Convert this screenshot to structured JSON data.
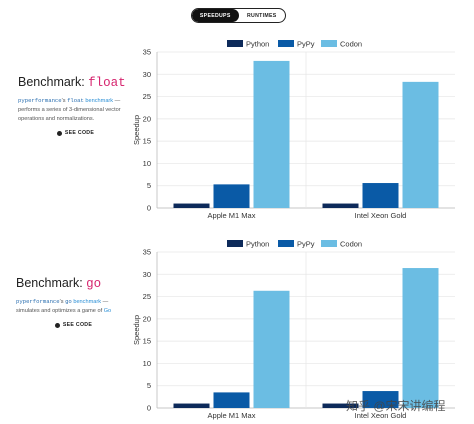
{
  "toggle": {
    "active": "SPEEDUPS",
    "inactive": "RUNTIMES"
  },
  "benchmarks": [
    {
      "title_prefix": "Benchmark: ",
      "title_code": "float",
      "desc_mono1": "pyperformance",
      "desc_text1": "'s ",
      "desc_mono2": "float",
      "desc_link": " benchmark",
      "desc_text2": " — performs a series of 3-dimensional vector operations and normalizations.",
      "see_code": "SEE CODE"
    },
    {
      "title_prefix": "Benchmark: ",
      "title_code": "go",
      "desc_mono1": "pyperformance",
      "desc_text1": "'s ",
      "desc_mono2": "go",
      "desc_link": " benchmark",
      "desc_text2": " — simulates and optimizes a game of ",
      "desc_link2": "Go",
      "see_code": "SEE CODE"
    }
  ],
  "colors": {
    "python": "#0d2a5a",
    "pypy": "#0a5aa6",
    "codon": "#6bbde3"
  },
  "chart_data": [
    {
      "type": "bar",
      "categories": [
        "Apple M1 Max",
        "Intel Xeon Gold"
      ],
      "series": [
        {
          "name": "Python",
          "values": [
            1,
            1
          ]
        },
        {
          "name": "PyPy",
          "values": [
            5.3,
            5.6
          ]
        },
        {
          "name": "Codon",
          "values": [
            33,
            28.3
          ]
        }
      ],
      "ylabel": "Speedup",
      "ylim": [
        0,
        35
      ],
      "yticks": [
        0,
        5,
        10,
        15,
        20,
        25,
        30,
        35
      ],
      "legend": "top-center",
      "grid": true
    },
    {
      "type": "bar",
      "categories": [
        "Apple M1 Max",
        "Intel Xeon Gold"
      ],
      "series": [
        {
          "name": "Python",
          "values": [
            1,
            1
          ]
        },
        {
          "name": "PyPy",
          "values": [
            3.5,
            3.8
          ]
        },
        {
          "name": "Codon",
          "values": [
            26.3,
            31.4
          ]
        }
      ],
      "ylabel": "Speedup",
      "ylim": [
        0,
        35
      ],
      "yticks": [
        0,
        5,
        10,
        15,
        20,
        25,
        30,
        35
      ],
      "legend": "top-center",
      "grid": true
    }
  ],
  "watermark": "知乎 @宋宋讲编程"
}
